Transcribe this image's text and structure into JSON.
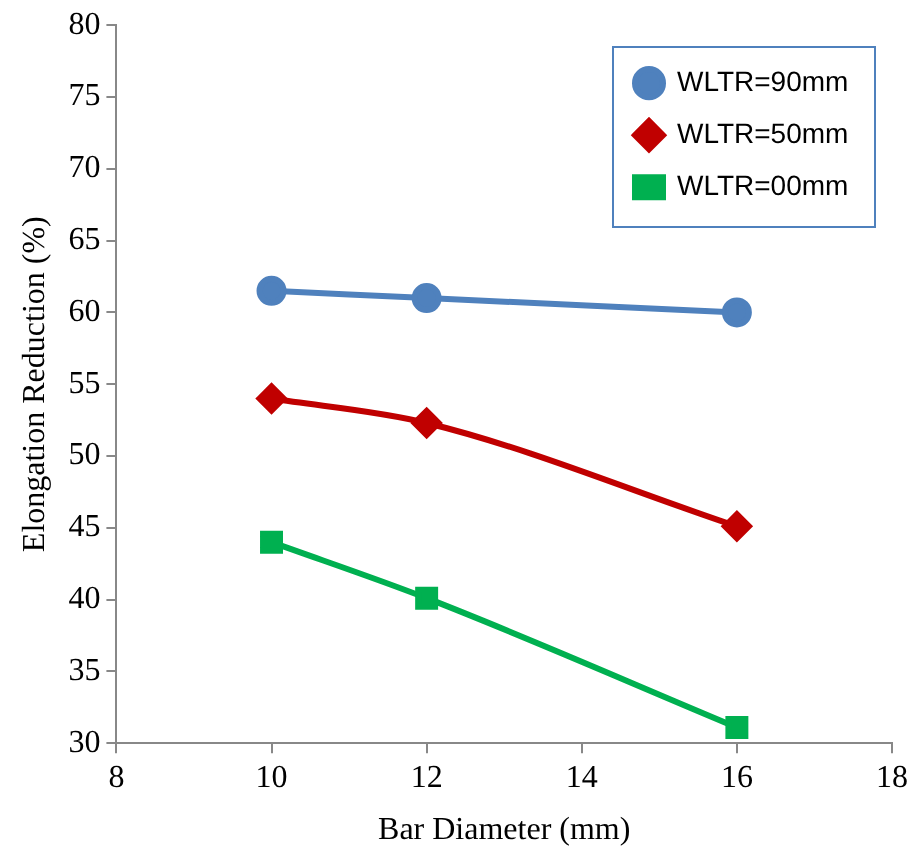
{
  "chart_data": {
    "type": "line",
    "xlabel": "Bar Diameter (mm)",
    "ylabel": "Elongation Reduction (%)",
    "x": [
      10,
      12,
      16
    ],
    "series": [
      {
        "name": "WLTR=90mm",
        "color": "#4f81bd",
        "marker": "circle",
        "values": [
          61.5,
          61,
          60
        ]
      },
      {
        "name": "WLTR=50mm",
        "color": "#c00000",
        "marker": "diamond",
        "values": [
          54,
          52.3,
          45.1
        ]
      },
      {
        "name": "WLTR=00mm",
        "color": "#00b050",
        "marker": "square",
        "values": [
          44,
          40.1,
          31.1
        ]
      }
    ],
    "xlim": [
      8,
      18
    ],
    "xticks": [
      8,
      10,
      12,
      14,
      16,
      18
    ],
    "ylim": [
      30,
      80
    ],
    "yticks": [
      30,
      35,
      40,
      45,
      50,
      55,
      60,
      65,
      70,
      75,
      80
    ],
    "grid": false,
    "legend": "top right",
    "line_style": "solid"
  }
}
